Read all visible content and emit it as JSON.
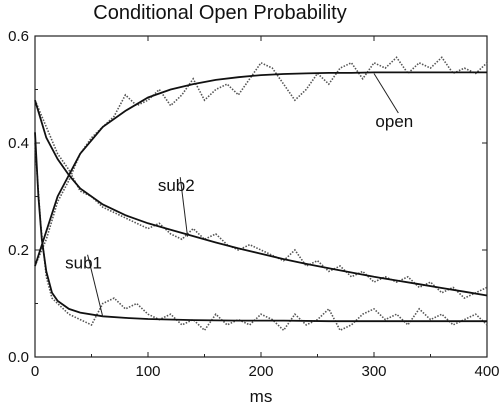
{
  "chart_data": {
    "type": "line",
    "title": "Conditional Open Probability",
    "xlabel": "ms",
    "ylabel": "",
    "xlim": [
      0,
      400
    ],
    "ylim": [
      0,
      0.6
    ],
    "x_ticks": [
      "0",
      "100",
      "200",
      "300",
      "400"
    ],
    "y_ticks": [
      "0.0",
      "0.2",
      "0.4",
      "0.6"
    ],
    "grid": false,
    "legend": "none",
    "series": [
      {
        "name": "open",
        "fit": {
          "x": [
            0,
            20,
            40,
            60,
            80,
            100,
            120,
            140,
            160,
            180,
            200,
            220,
            240,
            260,
            280,
            300,
            320,
            340,
            360,
            380,
            400
          ],
          "y": [
            0.17,
            0.3,
            0.38,
            0.43,
            0.46,
            0.485,
            0.5,
            0.51,
            0.518,
            0.523,
            0.527,
            0.529,
            0.53,
            0.531,
            0.531,
            0.532,
            0.532,
            0.532,
            0.532,
            0.532,
            0.532
          ]
        },
        "noisy": {
          "x": [
            0,
            10,
            20,
            30,
            40,
            50,
            60,
            70,
            80,
            90,
            100,
            110,
            120,
            130,
            140,
            150,
            160,
            170,
            180,
            190,
            200,
            210,
            220,
            230,
            240,
            250,
            260,
            270,
            280,
            290,
            300,
            310,
            320,
            330,
            340,
            350,
            360,
            370,
            380,
            390,
            400
          ],
          "y": [
            0.17,
            0.22,
            0.29,
            0.33,
            0.38,
            0.41,
            0.43,
            0.45,
            0.49,
            0.47,
            0.48,
            0.5,
            0.47,
            0.49,
            0.52,
            0.48,
            0.5,
            0.51,
            0.49,
            0.52,
            0.55,
            0.54,
            0.51,
            0.48,
            0.5,
            0.53,
            0.51,
            0.54,
            0.55,
            0.52,
            0.55,
            0.54,
            0.56,
            0.53,
            0.55,
            0.54,
            0.56,
            0.53,
            0.54,
            0.53,
            0.55
          ]
        }
      },
      {
        "name": "sub2",
        "fit": {
          "x": [
            0,
            10,
            20,
            30,
            40,
            60,
            80,
            100,
            120,
            140,
            160,
            180,
            200,
            220,
            240,
            260,
            280,
            300,
            320,
            340,
            360,
            380,
            400
          ],
          "y": [
            0.48,
            0.41,
            0.37,
            0.34,
            0.315,
            0.285,
            0.265,
            0.25,
            0.238,
            0.226,
            0.214,
            0.203,
            0.193,
            0.183,
            0.174,
            0.166,
            0.158,
            0.15,
            0.143,
            0.136,
            0.129,
            0.122,
            0.115
          ]
        },
        "noisy": {
          "x": [
            0,
            10,
            20,
            30,
            40,
            50,
            60,
            70,
            80,
            90,
            100,
            110,
            120,
            130,
            140,
            150,
            160,
            170,
            180,
            190,
            200,
            210,
            220,
            230,
            240,
            250,
            260,
            270,
            280,
            290,
            300,
            310,
            320,
            330,
            340,
            350,
            360,
            370,
            380,
            390,
            400
          ],
          "y": [
            0.48,
            0.43,
            0.38,
            0.35,
            0.31,
            0.3,
            0.28,
            0.27,
            0.26,
            0.25,
            0.24,
            0.25,
            0.23,
            0.22,
            0.24,
            0.22,
            0.23,
            0.21,
            0.2,
            0.21,
            0.2,
            0.19,
            0.18,
            0.2,
            0.17,
            0.18,
            0.16,
            0.17,
            0.15,
            0.16,
            0.14,
            0.15,
            0.14,
            0.15,
            0.13,
            0.14,
            0.12,
            0.13,
            0.11,
            0.12,
            0.13
          ]
        }
      },
      {
        "name": "sub1",
        "fit": {
          "x": [
            0,
            3,
            6,
            10,
            15,
            20,
            30,
            40,
            60,
            80,
            100,
            140,
            180,
            220,
            260,
            300,
            340,
            400
          ],
          "y": [
            0.42,
            0.3,
            0.22,
            0.16,
            0.12,
            0.105,
            0.09,
            0.083,
            0.076,
            0.073,
            0.071,
            0.069,
            0.068,
            0.068,
            0.067,
            0.067,
            0.067,
            0.067
          ]
        },
        "noisy": {
          "x": [
            0,
            5,
            10,
            15,
            20,
            30,
            40,
            50,
            60,
            70,
            80,
            90,
            100,
            110,
            120,
            130,
            140,
            150,
            160,
            170,
            180,
            190,
            200,
            210,
            220,
            230,
            240,
            250,
            260,
            270,
            280,
            290,
            300,
            310,
            320,
            330,
            340,
            350,
            360,
            370,
            380,
            390,
            400
          ],
          "y": [
            0.4,
            0.25,
            0.15,
            0.11,
            0.1,
            0.08,
            0.07,
            0.06,
            0.1,
            0.11,
            0.09,
            0.1,
            0.08,
            0.07,
            0.08,
            0.06,
            0.07,
            0.05,
            0.08,
            0.06,
            0.07,
            0.06,
            0.08,
            0.07,
            0.05,
            0.08,
            0.06,
            0.07,
            0.09,
            0.05,
            0.06,
            0.08,
            0.09,
            0.07,
            0.08,
            0.06,
            0.09,
            0.07,
            0.08,
            0.06,
            0.07,
            0.08,
            0.06
          ]
        }
      }
    ],
    "annotations": [
      {
        "text": "open",
        "x": 318,
        "y": 0.43,
        "points_to": {
          "x": 300,
          "y": 0.53
        }
      },
      {
        "text": "sub2",
        "x": 125,
        "y": 0.31,
        "points_to": {
          "x": 135,
          "y": 0.225
        }
      },
      {
        "text": "sub1",
        "x": 43,
        "y": 0.165,
        "points_to": {
          "x": 60,
          "y": 0.075
        }
      }
    ]
  }
}
